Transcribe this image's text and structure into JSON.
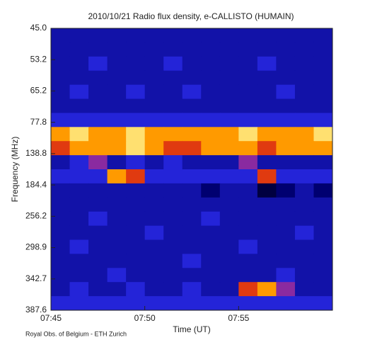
{
  "chart_data": {
    "type": "heatmap",
    "title": "2010/10/21  Radio flux density, e-CALLISTO (HUMAIN)",
    "xlabel": "Time (UT)",
    "ylabel": "Frequency (MHz)",
    "footer": "Royal Obs. of Belgium - ETH Zurich",
    "xlim": [
      465,
      480
    ],
    "xticks": [
      {
        "value": 465,
        "label": "07:45"
      },
      {
        "value": 470,
        "label": "07:50"
      },
      {
        "value": 475,
        "label": "07:55"
      }
    ],
    "y_tick_labels": [
      "45.0",
      "53.2",
      "65.2",
      "77.8",
      "138.8",
      "184.4",
      "256.2",
      "298.9",
      "342.7",
      "387.6"
    ],
    "x": [
      465,
      466,
      467,
      468,
      469,
      470,
      471,
      472,
      473,
      474,
      475,
      476,
      477,
      478,
      479
    ],
    "colorscale": [
      "#000000",
      "#000040",
      "#000070",
      "#1212a8",
      "#2424d8",
      "#3838ff",
      "#8a2aa0",
      "#e03a10",
      "#ff9a00",
      "#ffe070",
      "#ffffff"
    ],
    "z": [
      [
        3,
        3,
        3,
        3,
        3,
        3,
        3,
        3,
        3,
        3,
        3,
        3,
        3,
        3,
        3
      ],
      [
        3,
        3,
        3,
        3,
        3,
        3,
        3,
        3,
        3,
        3,
        3,
        3,
        3,
        3,
        3
      ],
      [
        3,
        3,
        4,
        3,
        3,
        3,
        4,
        3,
        3,
        3,
        3,
        4,
        3,
        3,
        3
      ],
      [
        3,
        3,
        3,
        3,
        3,
        3,
        3,
        3,
        3,
        3,
        3,
        3,
        3,
        3,
        3
      ],
      [
        3,
        4,
        3,
        3,
        4,
        3,
        3,
        4,
        3,
        3,
        3,
        3,
        4,
        3,
        3
      ],
      [
        3,
        3,
        3,
        3,
        3,
        3,
        3,
        3,
        3,
        3,
        3,
        3,
        3,
        3,
        3
      ],
      [
        4,
        4,
        4,
        4,
        4,
        4,
        4,
        4,
        4,
        4,
        4,
        4,
        4,
        4,
        4
      ],
      [
        8,
        9,
        8,
        8,
        9,
        8,
        8,
        8,
        8,
        8,
        9,
        8,
        8,
        8,
        9
      ],
      [
        7,
        8,
        8,
        8,
        9,
        8,
        7,
        7,
        8,
        8,
        8,
        7,
        8,
        8,
        8
      ],
      [
        3,
        4,
        6,
        3,
        4,
        3,
        4,
        3,
        3,
        3,
        6,
        3,
        3,
        3,
        3
      ],
      [
        4,
        4,
        4,
        8,
        7,
        4,
        4,
        4,
        4,
        4,
        4,
        7,
        4,
        4,
        4
      ],
      [
        3,
        3,
        3,
        3,
        3,
        3,
        3,
        3,
        2,
        3,
        3,
        1,
        2,
        3,
        2
      ],
      [
        3,
        3,
        3,
        3,
        3,
        3,
        3,
        3,
        3,
        3,
        3,
        3,
        3,
        3,
        3
      ],
      [
        3,
        3,
        4,
        3,
        3,
        3,
        3,
        3,
        4,
        3,
        3,
        3,
        3,
        3,
        3
      ],
      [
        3,
        3,
        3,
        3,
        3,
        4,
        3,
        3,
        3,
        3,
        3,
        3,
        3,
        4,
        3
      ],
      [
        3,
        4,
        3,
        3,
        3,
        3,
        3,
        3,
        3,
        3,
        4,
        3,
        3,
        3,
        3
      ],
      [
        3,
        3,
        3,
        3,
        3,
        3,
        3,
        4,
        3,
        3,
        3,
        3,
        3,
        3,
        3
      ],
      [
        3,
        3,
        3,
        4,
        3,
        3,
        3,
        3,
        3,
        3,
        3,
        3,
        4,
        3,
        3
      ],
      [
        3,
        4,
        3,
        3,
        4,
        3,
        3,
        4,
        3,
        3,
        7,
        8,
        6,
        3,
        3
      ],
      [
        4,
        4,
        4,
        4,
        4,
        4,
        4,
        4,
        4,
        4,
        4,
        4,
        4,
        4,
        4
      ]
    ]
  }
}
